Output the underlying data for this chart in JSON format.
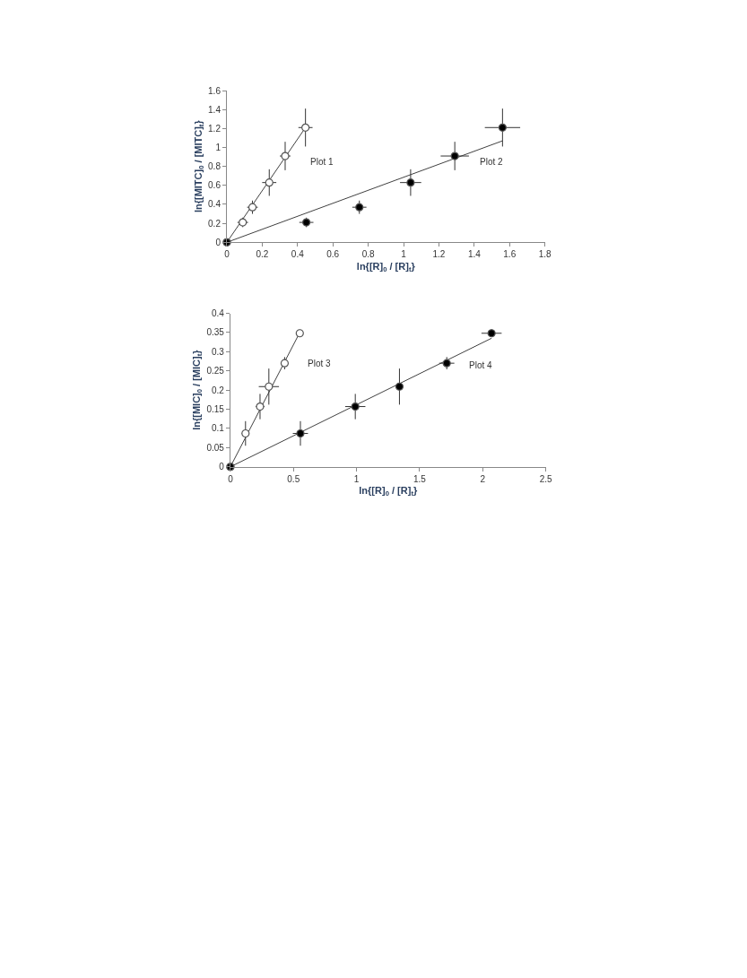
{
  "chart_data": [
    {
      "type": "scatter",
      "xlabel": "ln{[R]$_{0}$ / [R]$_{t}$}",
      "ylabel": "ln{[MITC]$_{0}$ / [MITC]$_{t}$}",
      "xlim": [
        0,
        1.8
      ],
      "xticks": [
        0,
        0.2,
        0.4,
        0.6,
        0.8,
        1,
        1.2,
        1.4,
        1.6,
        1.8
      ],
      "ylim": [
        0,
        1.6
      ],
      "yticks": [
        0,
        0.2,
        0.4,
        0.6,
        0.8,
        1,
        1.2,
        1.4,
        1.6
      ],
      "legend": false,
      "marker": "circle",
      "series": [
        {
          "name": "Plot 1",
          "color": "#ffffff",
          "x": [
            0,
            0.09,
            0.145,
            0.24,
            0.33,
            0.445
          ],
          "values": [
            0,
            0.21,
            0.37,
            0.63,
            0.91,
            1.21
          ],
          "errors": [
            null,
            0.05,
            0.07,
            0.14,
            0.15,
            0.2
          ],
          "xerrors": [
            null,
            0.03,
            0.03,
            0.04,
            0.03,
            0.04
          ]
        },
        {
          "name": "Plot 2",
          "color": "#000000",
          "x": [
            0,
            0.45,
            0.75,
            1.04,
            1.29,
            1.56
          ],
          "values": [
            0,
            0.21,
            0.37,
            0.63,
            0.91,
            1.21
          ],
          "errors": [
            null,
            0.05,
            0.07,
            0.14,
            0.15,
            0.2
          ],
          "xerrors": [
            null,
            0.04,
            0.04,
            0.06,
            0.08,
            0.1
          ]
        },
        {
          "type": "line",
          "marker": "none",
          "color": "#404040",
          "x": [
            0,
            0.445
          ],
          "values": [
            0,
            1.21
          ]
        },
        {
          "type": "line",
          "marker": "none",
          "color": "#404040",
          "x": [
            0,
            1.56
          ],
          "values": [
            0,
            1.07
          ]
        }
      ]
    },
    {
      "type": "scatter",
      "xlabel": "ln{[R]$_{0}$ / [R]$_{t}$}",
      "ylabel": "ln{[MIC]$_{0}$ / [MIC]$_{t}$}",
      "xlim": [
        0,
        2.5
      ],
      "xticks": [
        0,
        0.5,
        1,
        1.5,
        2,
        2.5
      ],
      "ylim": [
        0,
        0.4
      ],
      "yticks": [
        0,
        0.05,
        0.1,
        0.15,
        0.2,
        0.25,
        0.3,
        0.35,
        0.4
      ],
      "legend": false,
      "marker": "circle",
      "series": [
        {
          "name": "Plot 3",
          "color": "#ffffff",
          "x": [
            0,
            0.12,
            0.235,
            0.305,
            0.43,
            0.55
          ],
          "values": [
            0,
            0.087,
            0.157,
            0.209,
            0.27,
            0.348
          ],
          "errors": [
            null,
            0.032,
            0.033,
            0.047,
            0.016,
            0.01
          ],
          "xerrors": [
            null,
            0.03,
            0.035,
            0.08,
            0.02,
            0.02
          ]
        },
        {
          "name": "Plot 4",
          "color": "#000000",
          "x": [
            0,
            0.555,
            0.99,
            1.34,
            1.715,
            2.07
          ],
          "values": [
            0,
            0.087,
            0.157,
            0.209,
            0.27,
            0.348
          ],
          "errors": [
            null,
            0.032,
            0.033,
            0.047,
            0.016,
            0.01
          ],
          "xerrors": [
            null,
            0.06,
            0.08,
            0.03,
            0.06,
            0.08
          ]
        },
        {
          "type": "line",
          "marker": "none",
          "color": "#404040",
          "x": [
            0,
            0.55
          ],
          "values": [
            0,
            0.35
          ]
        },
        {
          "type": "line",
          "marker": "none",
          "color": "#404040",
          "x": [
            0,
            2.07
          ],
          "values": [
            0,
            0.335
          ]
        }
      ]
    }
  ]
}
